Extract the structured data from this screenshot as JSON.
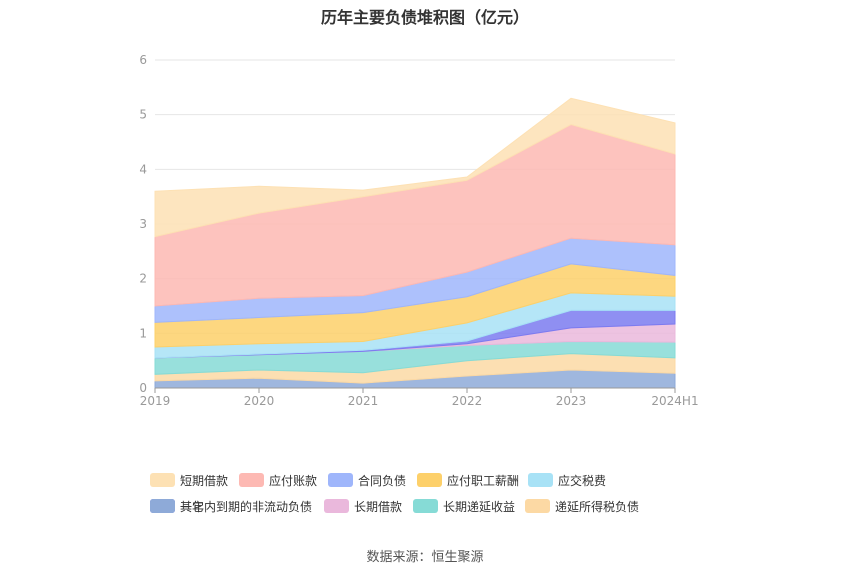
{
  "chart_data": {
    "type": "area",
    "stacked": true,
    "title": "历年主要负债堆积图（亿元）",
    "categories": [
      "2019",
      "2020",
      "2021",
      "2022",
      "2023",
      "2024H1"
    ],
    "ylim": [
      0,
      6
    ],
    "yticks": [
      "0",
      "1",
      "2",
      "3",
      "4",
      "5",
      "6"
    ],
    "grid": true,
    "legend_position": "bottom",
    "series": [
      {
        "name": "其它",
        "color": "#8eaad8",
        "values": [
          0.13,
          0.18,
          0.09,
          0.22,
          0.33,
          0.27
        ]
      },
      {
        "name": "递延所得税负债",
        "color": "#fcd9a4",
        "values": [
          0.12,
          0.15,
          0.19,
          0.28,
          0.3,
          0.28
        ]
      },
      {
        "name": "长期递延收益",
        "color": "#86dbd6",
        "values": [
          0.3,
          0.28,
          0.39,
          0.28,
          0.22,
          0.29
        ]
      },
      {
        "name": "长期借款",
        "color": "#eab8dc",
        "values": [
          0.0,
          0.0,
          0.0,
          0.03,
          0.25,
          0.33
        ]
      },
      {
        "name": "一年内到期的非流动负债",
        "color": "#7b7bf0",
        "values": [
          0.0,
          0.01,
          0.02,
          0.05,
          0.32,
          0.25
        ]
      },
      {
        "name": "应交税费",
        "color": "#a8e2f6",
        "values": [
          0.2,
          0.19,
          0.16,
          0.33,
          0.32,
          0.26
        ]
      },
      {
        "name": "应付职工薪酬",
        "color": "#fdd06a",
        "values": [
          0.45,
          0.48,
          0.53,
          0.48,
          0.53,
          0.38
        ]
      },
      {
        "name": "合同负债",
        "color": "#9fb6fb",
        "values": [
          0.3,
          0.35,
          0.31,
          0.45,
          0.47,
          0.56
        ]
      },
      {
        "name": "应付账款",
        "color": "#fdb9b3",
        "values": [
          1.27,
          1.56,
          1.81,
          1.68,
          2.08,
          1.66
        ]
      },
      {
        "name": "短期借款",
        "color": "#fde1b4",
        "values": [
          0.83,
          0.49,
          0.12,
          0.06,
          0.48,
          0.57
        ]
      }
    ]
  },
  "legend": {
    "items": [
      {
        "label": "短期借款",
        "color": "#fde1b4"
      },
      {
        "label": "应付账款",
        "color": "#fdb9b3"
      },
      {
        "label": "合同负债",
        "color": "#9fb6fb"
      },
      {
        "label": "应付职工薪酬",
        "color": "#fdd06a"
      },
      {
        "label": "应交税费",
        "color": "#a8e2f6"
      },
      {
        "label": "一年内到期的非流动负债",
        "color": "#7b7bf0"
      },
      {
        "label": "长期借款",
        "color": "#eab8dc"
      },
      {
        "label": "长期递延收益",
        "color": "#86dbd6"
      },
      {
        "label": "递延所得税负债",
        "color": "#fcd9a4"
      },
      {
        "label": "其它",
        "color": "#8eaad8"
      }
    ]
  },
  "source": "数据来源：恒生聚源"
}
